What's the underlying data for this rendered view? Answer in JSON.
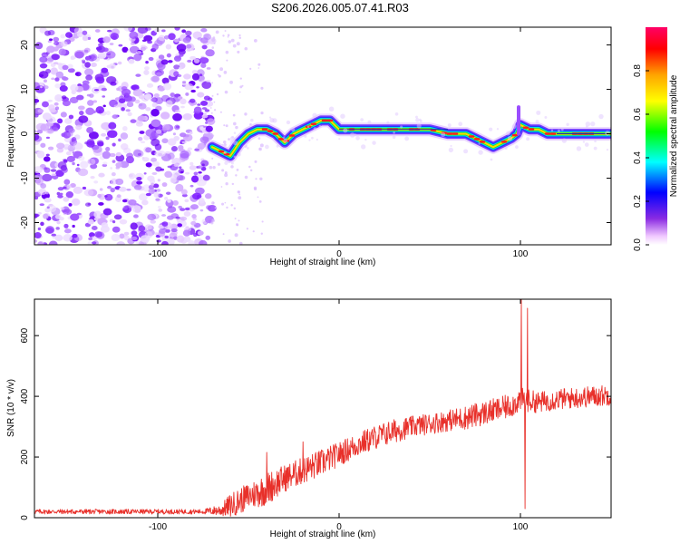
{
  "figure": {
    "title": "S206.2026.005.07.41.R03"
  },
  "colors": {
    "spectrogram_background": "#ffffff",
    "scatter_noise": "#8a2be2",
    "snr_line": "#e8302a",
    "frame": "#000000"
  },
  "chart_data": [
    {
      "type": "heatmap",
      "title": "",
      "xlabel": "Height of straight line (km)",
      "ylabel": "Frequency (Hz)",
      "xlim": [
        -168,
        150
      ],
      "ylim": [
        -25,
        24
      ],
      "xticks": [
        -100,
        0,
        100
      ],
      "yticks": [
        20,
        10,
        0,
        -10,
        -20
      ],
      "noise_region": {
        "x_start": -168,
        "x_end": -70,
        "y_start": -25,
        "y_end": 24
      },
      "ridge": {
        "x": [
          -70,
          -65,
          -60,
          -55,
          -50,
          -45,
          -40,
          -35,
          -30,
          -25,
          -20,
          -15,
          -10,
          -5,
          0,
          10,
          20,
          30,
          40,
          50,
          60,
          70,
          75,
          80,
          85,
          90,
          95,
          98,
          100,
          105,
          110,
          115,
          120,
          130,
          140,
          150
        ],
        "y": [
          -3,
          -4,
          -5,
          -2,
          0,
          1,
          1,
          0,
          -2,
          0,
          1,
          2,
          3,
          3,
          1,
          1,
          1,
          1,
          1,
          1,
          0,
          0,
          -1,
          -2,
          -3,
          -2,
          -1,
          0,
          2,
          1,
          1,
          0,
          0,
          0,
          0,
          0
        ]
      },
      "spike": {
        "x": 99,
        "y_from": 0,
        "y_to": 6
      },
      "colorbar": {
        "label": "Normalized spectral amplitude",
        "ticks": [
          "0.0",
          "0.2",
          "0.4",
          "0.6",
          "0.8"
        ],
        "range": [
          0,
          1
        ]
      }
    },
    {
      "type": "line",
      "title": "",
      "xlabel": "Height of straight line (km)",
      "ylabel": "SNR (10 * v/v)",
      "xlim": [
        -168,
        150
      ],
      "ylim": [
        0,
        720
      ],
      "xticks": [
        -100,
        0,
        100
      ],
      "yticks": [
        0,
        200,
        400,
        600
      ],
      "series": [
        {
          "name": "SNR",
          "anchors_x": [
            -168,
            -140,
            -110,
            -90,
            -75,
            -65,
            -60,
            -50,
            -40,
            -30,
            -20,
            -10,
            0,
            10,
            20,
            30,
            40,
            50,
            60,
            70,
            80,
            90,
            95,
            100,
            110,
            120,
            130,
            140,
            150
          ],
          "anchors_y": [
            20,
            20,
            20,
            20,
            20,
            25,
            40,
            70,
            95,
            130,
            155,
            180,
            210,
            240,
            265,
            285,
            300,
            310,
            320,
            330,
            345,
            360,
            370,
            390,
            380,
            390,
            395,
            400,
            405
          ],
          "noise_amplitude": [
            8,
            8,
            8,
            8,
            8,
            20,
            40,
            45,
            55,
            45,
            45,
            45,
            40,
            40,
            40,
            40,
            35,
            35,
            35,
            40,
            40,
            40,
            40,
            40,
            35,
            35,
            35,
            35,
            35
          ],
          "spikes": [
            {
              "x": -40,
              "y": 215
            },
            {
              "x": -20,
              "y": 250
            },
            {
              "x": 100.5,
              "y": 720
            },
            {
              "x": 102.5,
              "y": 30
            },
            {
              "x": 104,
              "y": 690
            }
          ]
        }
      ]
    }
  ]
}
